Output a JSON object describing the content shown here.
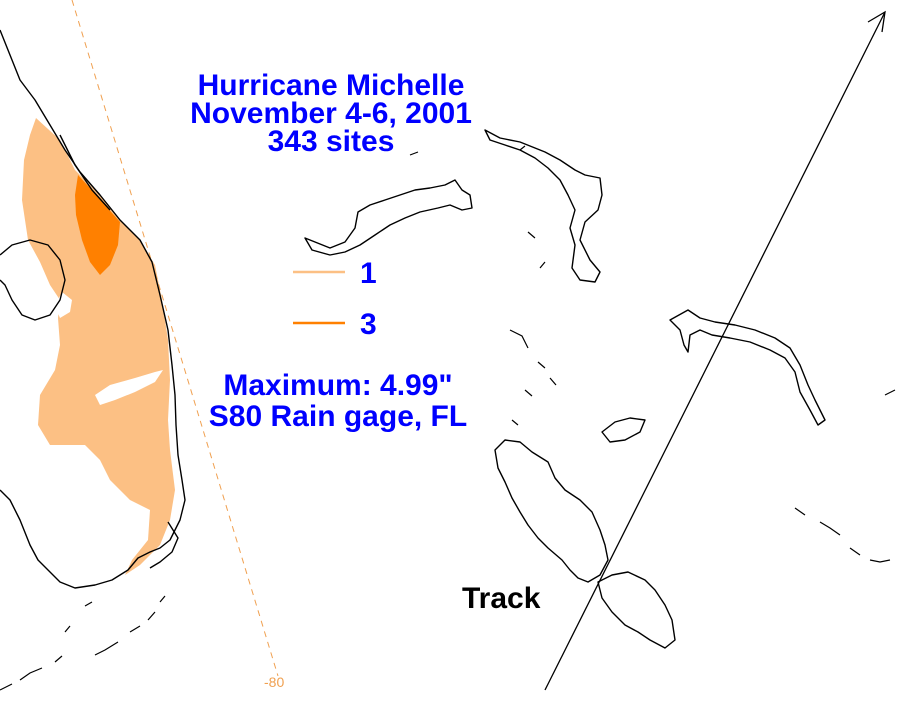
{
  "title": {
    "line1": "Hurricane Michelle",
    "line2": "November 4-6, 2001",
    "line3": "343 sites"
  },
  "legend": {
    "items": [
      {
        "label": "1",
        "color": "#fcc084"
      },
      {
        "label": "3",
        "color": "#ff8000"
      }
    ]
  },
  "maximum": {
    "line1": "Maximum:  4.99\"",
    "line2": "S80 Rain gage, FL"
  },
  "track": {
    "label": "Track",
    "color": "#000000"
  },
  "meridian": {
    "label": "-80",
    "color": "#f0a050"
  },
  "colors": {
    "text": "#0000ff",
    "rain_1in": "#fcc084",
    "rain_3in": "#ff8000",
    "coastline": "#000000"
  }
}
